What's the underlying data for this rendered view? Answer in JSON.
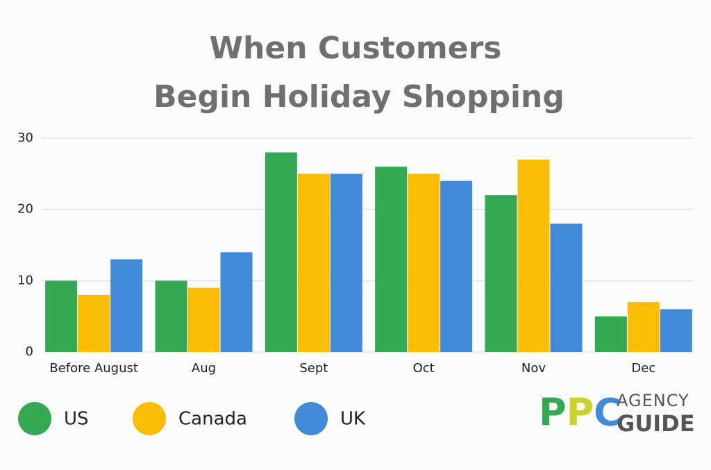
{
  "chart_data": {
    "type": "bar",
    "title": [
      "When Customers",
      "Begin Holiday Shopping"
    ],
    "categories": [
      "Before August",
      "Aug",
      "Sept",
      "Oct",
      "Nov",
      "Dec"
    ],
    "series": [
      {
        "name": "US",
        "color": "#34a853",
        "values": [
          10,
          10,
          28,
          26,
          22,
          5
        ]
      },
      {
        "name": "Canada",
        "color": "#fbbc04",
        "values": [
          8,
          9,
          25,
          25,
          27,
          7
        ]
      },
      {
        "name": "UK",
        "color": "#4289dc",
        "values": [
          13,
          14,
          25,
          24,
          18,
          6
        ]
      }
    ],
    "ylim": [
      0,
      30
    ],
    "yticks": [
      0,
      10,
      20,
      30
    ],
    "grid": true,
    "legend": "bottom"
  },
  "logo": {
    "mark": "PPC",
    "line1": "AGENCY",
    "line2": "GUIDE"
  }
}
